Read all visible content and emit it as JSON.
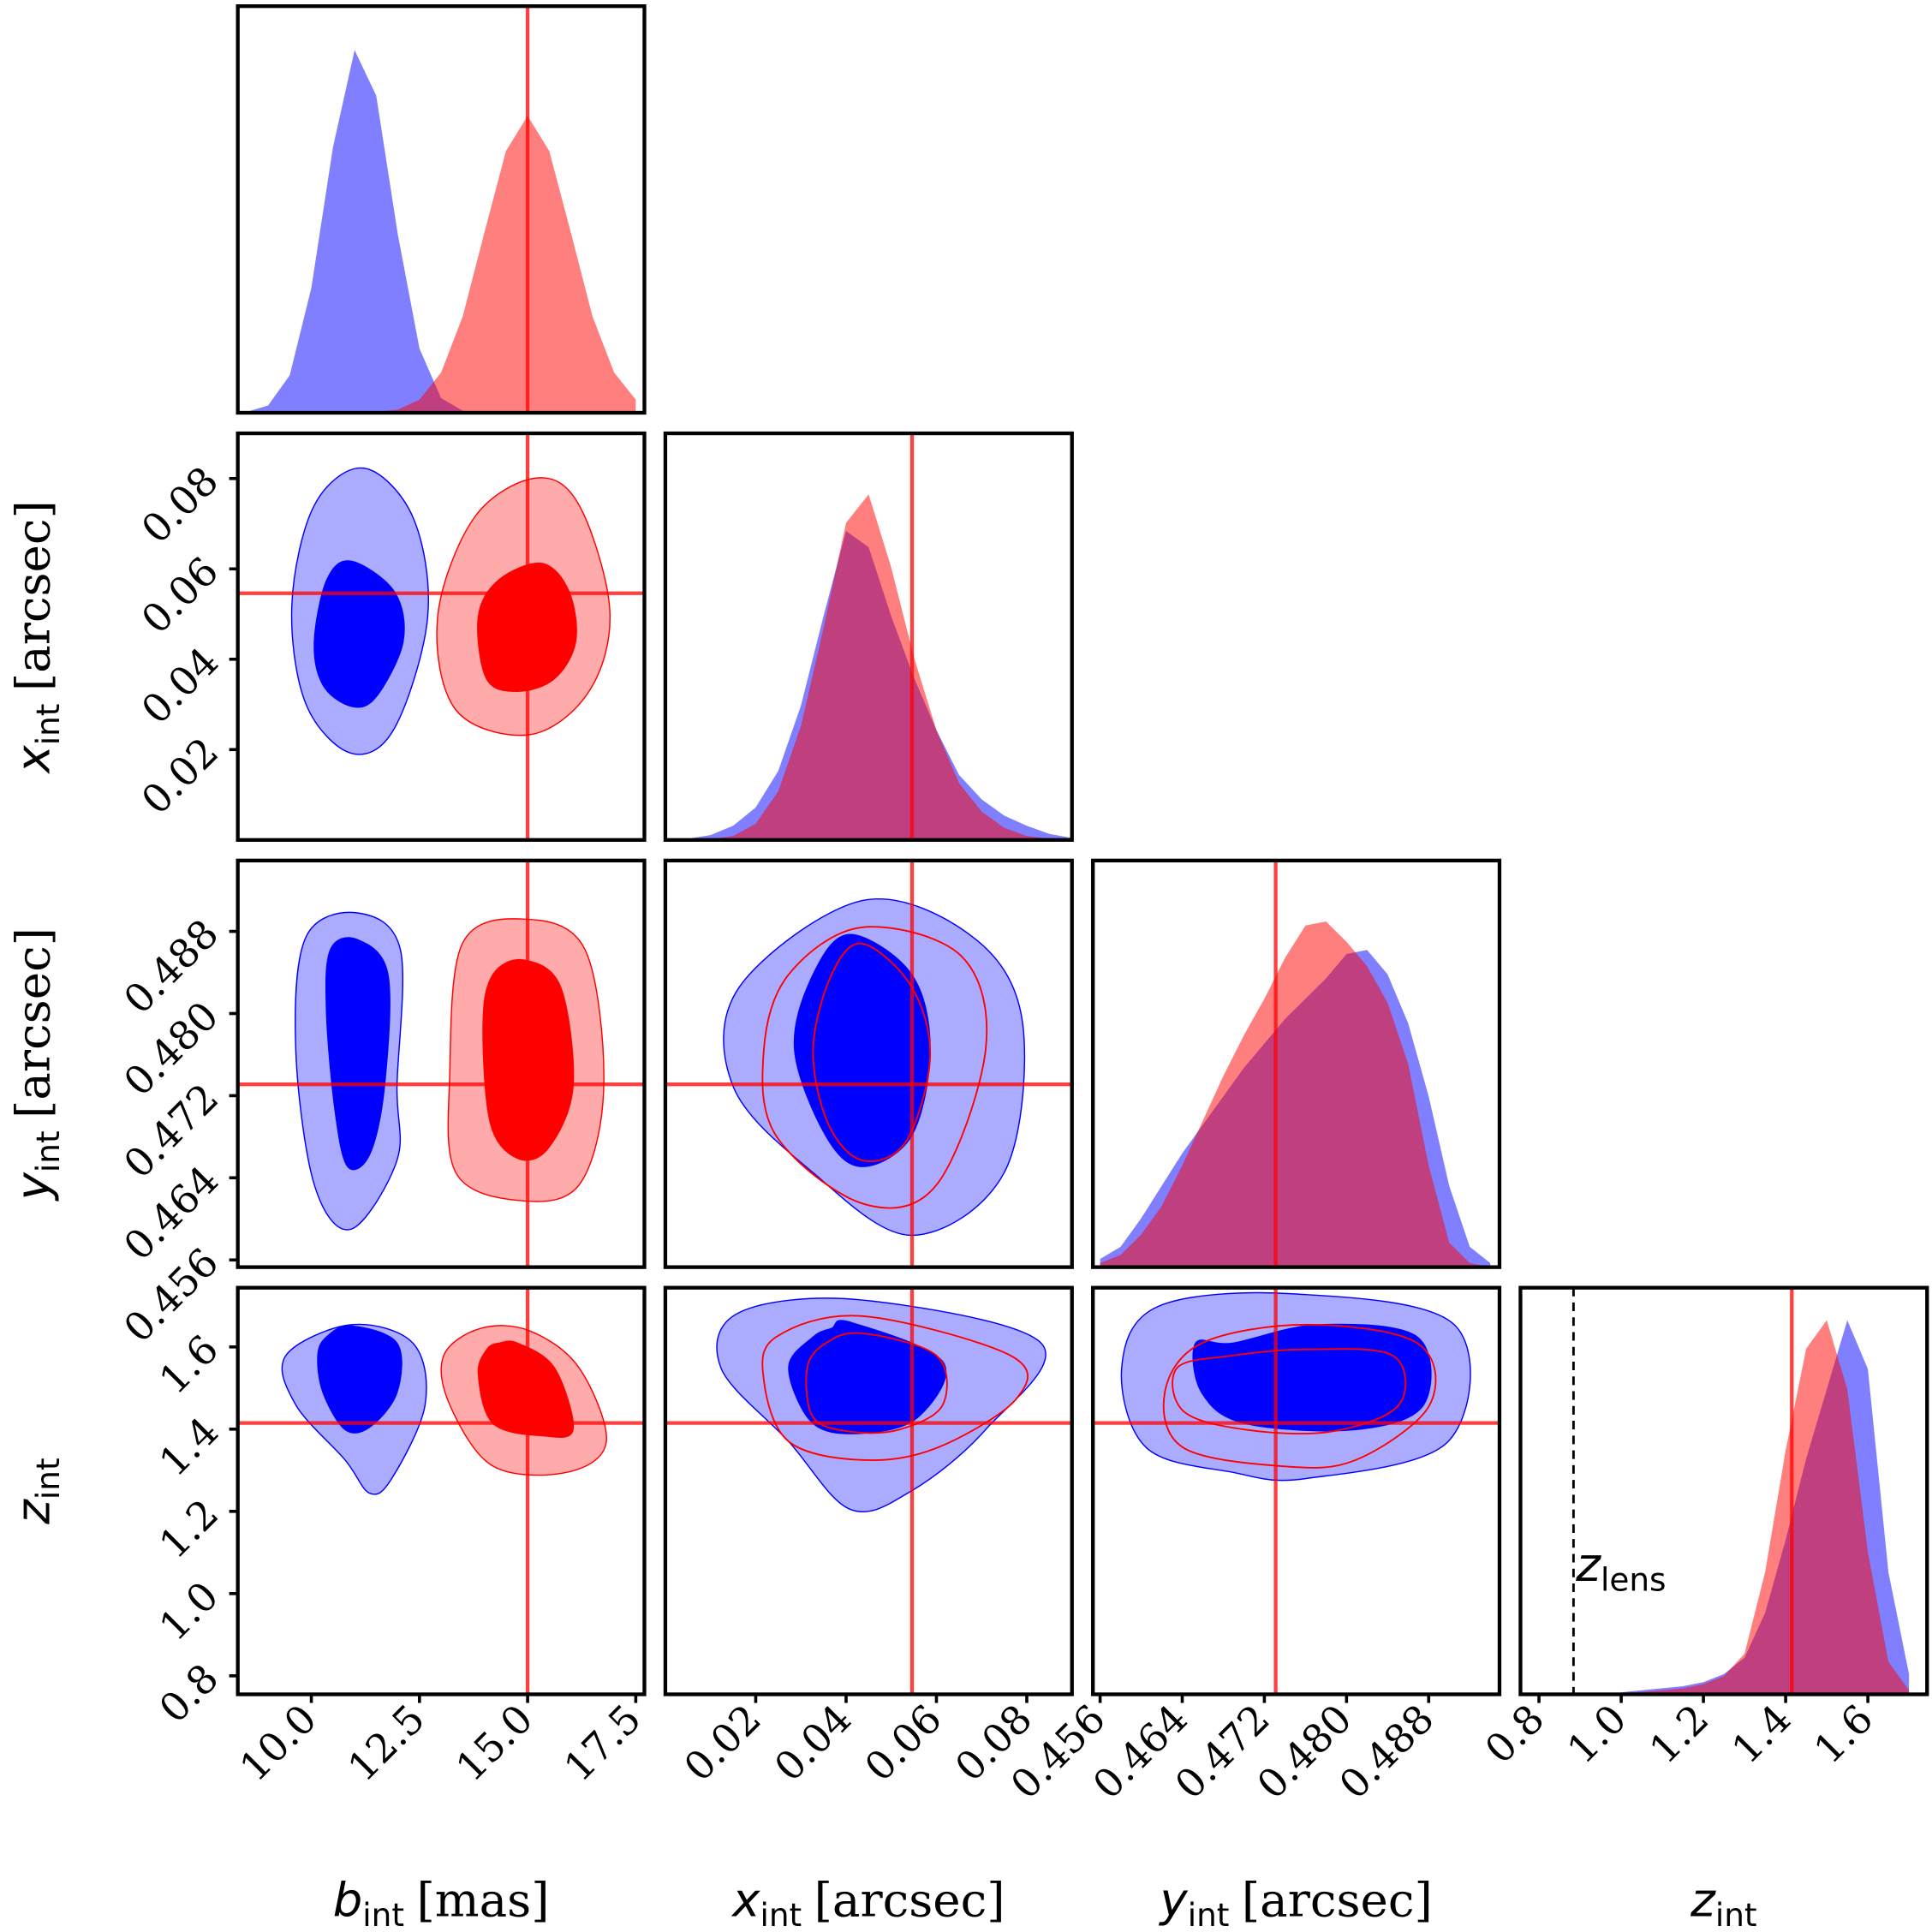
{
  "chart_data": {
    "type": "corner",
    "density_ylim": [
      0,
      1
    ],
    "series": [
      {
        "color": "#0000ff"
      },
      {
        "color": "#ff0000"
      }
    ],
    "truth_color": "#ff0000",
    "params": [
      {
        "symbol": "b",
        "subscript": "int",
        "unit": "[mas]",
        "lim": [
          8.3,
          17.7
        ],
        "ticks": [
          {
            "value": 10,
            "label": "10.0"
          },
          12.5,
          {
            "value": 15,
            "label": "15.0"
          },
          17.5
        ],
        "truth": 15.0,
        "density_x": [
          8.5,
          9,
          9.5,
          10,
          10.5,
          11,
          11.5,
          12,
          12.5,
          13,
          13.5,
          14,
          14.5,
          15,
          15.5,
          16,
          16.5,
          17,
          17.5
        ],
        "density": [
          [
            0.002,
            0.018,
            0.092,
            0.307,
            0.653,
            0.892,
            0.78,
            0.438,
            0.158,
            0.036,
            0.005,
            0,
            0,
            0,
            0,
            0,
            0,
            0,
            0
          ],
          [
            0,
            0,
            0,
            0,
            0,
            0,
            0.002,
            0.008,
            0.032,
            0.099,
            0.237,
            0.443,
            0.644,
            0.73,
            0.644,
            0.443,
            0.237,
            0.099,
            0.032
          ]
        ]
      },
      {
        "symbol": "x",
        "subscript": "int",
        "unit": "[arcsec]",
        "lim": [
          0,
          0.09
        ],
        "ticks": [
          0.02,
          0.04,
          0.06,
          0.08
        ],
        "truth": 0.0546,
        "density_x": [
          0.005,
          0.01,
          0.015,
          0.02,
          0.025,
          0.03,
          0.035,
          0.04,
          0.045,
          0.05,
          0.055,
          0.06,
          0.065,
          0.07,
          0.075,
          0.08,
          0.085,
          0.09
        ],
        "density": [
          [
            0.003,
            0.012,
            0.035,
            0.08,
            0.17,
            0.33,
            0.55,
            0.76,
            0.72,
            0.55,
            0.4,
            0.27,
            0.16,
            0.1,
            0.06,
            0.035,
            0.015,
            0.005
          ],
          [
            0,
            0.002,
            0.01,
            0.04,
            0.12,
            0.28,
            0.52,
            0.78,
            0.85,
            0.67,
            0.45,
            0.27,
            0.14,
            0.07,
            0.03,
            0.01,
            0.003,
            0
          ]
        ]
      },
      {
        "symbol": "y",
        "subscript": "int",
        "unit": "[arcsec]",
        "lim": [
          0.4553,
          0.4949
        ],
        "ticks": [
          0.456,
          0.464,
          0.472,
          {
            "value": 0.48,
            "label": "0.480"
          },
          0.488
        ],
        "truth": 0.4731,
        "density_x": [
          0.456,
          0.458,
          0.46,
          0.462,
          0.464,
          0.466,
          0.468,
          0.47,
          0.472,
          0.474,
          0.476,
          0.478,
          0.48,
          0.482,
          0.484,
          0.486,
          0.488,
          0.49,
          0.492,
          0.494
        ],
        "density": [
          [
            0.02,
            0.05,
            0.12,
            0.2,
            0.28,
            0.35,
            0.42,
            0.49,
            0.55,
            0.61,
            0.66,
            0.71,
            0.77,
            0.78,
            0.72,
            0.6,
            0.42,
            0.2,
            0.05,
            0.01
          ],
          [
            0.01,
            0.03,
            0.08,
            0.15,
            0.25,
            0.36,
            0.47,
            0.57,
            0.66,
            0.76,
            0.84,
            0.85,
            0.8,
            0.74,
            0.65,
            0.5,
            0.25,
            0.06,
            0.01,
            0
          ]
        ]
      },
      {
        "symbol": "z",
        "subscript": "int",
        "lim": [
          0.755,
          1.744
        ],
        "ticks": [
          0.8,
          {
            "value": 1.0,
            "label": "1.0"
          },
          1.2,
          1.4,
          1.6
        ],
        "truth": 1.415,
        "density_x": [
          1.0,
          1.05,
          1.1,
          1.15,
          1.2,
          1.25,
          1.3,
          1.35,
          1.4,
          1.45,
          1.5,
          1.55,
          1.6,
          1.65,
          1.7
        ],
        "density": [
          [
            0.005,
            0.01,
            0.015,
            0.02,
            0.03,
            0.05,
            0.09,
            0.2,
            0.38,
            0.58,
            0.75,
            0.92,
            0.8,
            0.3,
            0.05
          ],
          [
            0.003,
            0.006,
            0.01,
            0.015,
            0.025,
            0.045,
            0.1,
            0.3,
            0.6,
            0.85,
            0.92,
            0.75,
            0.35,
            0.08,
            0.01
          ]
        ]
      }
    ],
    "contours": [
      {
        "series": [
          {
            "filled": true,
            "levels": [
              {
                "x": [
                  11.21,
                  12.35,
                  12.69,
                  11.92,
                  10.92,
                  9.87,
                  9.55,
                  10.07
                ],
                "y": [
                  0.0823,
                  0.0714,
                  0.0494,
                  0.0247,
                  0.0192,
                  0.0302,
                  0.0521,
                  0.0741
                ]
              },
              {
                "x": [
                  10.92,
                  11.92,
                  12.12,
                  11.49,
                  10.92,
                  10.27,
                  10.07,
                  10.36
                ],
                "y": [
                  0.0617,
                  0.0549,
                  0.0439,
                  0.0316,
                  0.0296,
                  0.0343,
                  0.0439,
                  0.0576
                ]
              }
            ]
          },
          {
            "filled": true,
            "levels": [
              {
                "x": [
                  15.19,
                  16.19,
                  16.9,
                  16.42,
                  15.05,
                  13.34,
                  12.92,
                  13.77
                ],
                "y": [
                  0.0801,
                  0.0741,
                  0.0508,
                  0.0329,
                  0.0233,
                  0.0288,
                  0.0494,
                  0.0714
                ]
              },
              {
                "x": [
                  15.34,
                  15.96,
                  16.11,
                  15.62,
                  14.77,
                  14.05,
                  13.86,
                  14.34
                ],
                "y": [
                  0.0612,
                  0.0549,
                  0.0439,
                  0.0357,
                  0.0329,
                  0.0357,
                  0.0494,
                  0.0576
                ]
              }
            ]
          }
        ]
      },
      {
        "series": [
          {
            "filled": true,
            "levels": [
              {
                "x": [
                  11.06,
                  12.06,
                  11.98,
                  11.98,
                  10.92,
                  10.07,
                  9.64,
                  9.87
                ],
                "y": [
                  0.4898,
                  0.4862,
                  0.4729,
                  0.4657,
                  0.459,
                  0.4633,
                  0.4765,
                  0.4874
                ]
              },
              {
                "x": [
                  11.06,
                  11.77,
                  11.69,
                  11.35,
                  10.84,
                  10.55,
                  10.35,
                  10.44
                ],
                "y": [
                  0.4872,
                  0.4838,
                  0.4729,
                  0.4663,
                  0.4651,
                  0.4705,
                  0.4802,
                  0.4862
                ]
              }
            ]
          },
          {
            "filled": true,
            "levels": [
              {
                "x": [
                  14.91,
                  16.33,
                  16.76,
                  16.19,
                  14.77,
                  13.34,
                  13.2,
                  13.49
                ],
                "y": [
                  0.4892,
                  0.4862,
                  0.4729,
                  0.4633,
                  0.4618,
                  0.4645,
                  0.4741,
                  0.4868
                ]
              },
              {
                "x": [
                  14.91,
                  15.76,
                  16.05,
                  15.48,
                  14.77,
                  14.14,
                  13.97,
                  14.2
                ],
                "y": [
                  0.4852,
                  0.4826,
                  0.4729,
                  0.4669,
                  0.4659,
                  0.4693,
                  0.479,
                  0.4838
                ]
              }
            ]
          }
        ]
      },
      {
        "series": [
          {
            "filled": true,
            "levels": [
              {
                "x": [
                  0.0436,
                  0.0682,
                  0.0791,
                  0.075,
                  0.0545,
                  0.0327,
                  0.015,
                  0.0164
                ],
                "y": [
                  0.491,
                  0.4874,
                  0.479,
                  0.4645,
                  0.4584,
                  0.4645,
                  0.4729,
                  0.4826
                ]
              },
              {
                "x": [
                  0.0409,
                  0.0545,
                  0.0586,
                  0.0545,
                  0.0436,
                  0.0355,
                  0.0286,
                  0.0327
                ],
                "y": [
                  0.4877,
                  0.4838,
                  0.4765,
                  0.4681,
                  0.4651,
                  0.4681,
                  0.4765,
                  0.4838
                ]
              }
            ]
          },
          {
            "filled": false,
            "levels": [
              {
                "x": [
                  0.0436,
                  0.0655,
                  0.0709,
                  0.06,
                  0.0436,
                  0.0245,
                  0.0218,
                  0.0273
                ],
                "y": [
                  0.4884,
                  0.4856,
                  0.4765,
                  0.4633,
                  0.4615,
                  0.4681,
                  0.4765,
                  0.4838
                ]
              },
              {
                "x": [
                  0.0436,
                  0.0545,
                  0.0586,
                  0.0532,
                  0.0436,
                  0.036,
                  0.0327,
                  0.0368
                ],
                "y": [
                  0.4868,
                  0.4826,
                  0.4757,
                  0.4675,
                  0.4657,
                  0.4693,
                  0.4765,
                  0.4838
                ]
              }
            ]
          }
        ]
      },
      {
        "series": [
          {
            "filled": true,
            "levels": [
              {
                "x": [
                  10.92,
                  12.35,
                  12.63,
                  11.86,
                  11.35,
                  10.78,
                  9.64,
                  9.41
                ],
                "y": [
                  1.654,
                  1.609,
                  1.459,
                  1.28,
                  1.244,
                  1.325,
                  1.459,
                  1.579
                ]
              },
              {
                "x": [
                  10.92,
                  11.98,
                  11.98,
                  11.35,
                  10.78,
                  10.27,
                  10.15,
                  10.35
                ],
                "y": [
                  1.651,
                  1.609,
                  1.489,
                  1.405,
                  1.399,
                  1.489,
                  1.579,
                  1.624
                ]
              }
            ]
          },
          {
            "filled": true,
            "levels": [
              {
                "x": [
                  15.05,
                  16.19,
                  16.82,
                  15.91,
                  14.2,
                  13.2,
                  13.06,
                  13.91
                ],
                "y": [
                  1.639,
                  1.549,
                  1.37,
                  1.295,
                  1.31,
                  1.459,
                  1.579,
                  1.645
                ]
              },
              {
                "x": [
                  14.77,
                  15.62,
                  16.05,
                  15.34,
                  14.2,
                  13.86,
                  14.06,
                  14.34
                ],
                "y": [
                  1.609,
                  1.549,
                  1.399,
                  1.384,
                  1.414,
                  1.534,
                  1.594,
                  1.609
                ]
              }
            ]
          }
        ]
      },
      {
        "series": [
          {
            "filled": true,
            "levels": [
              {
                "x": [
                  0.0436,
                  0.0832,
                  0.0709,
                  0.0545,
                  0.0409,
                  0.0273,
                  0.0123,
                  0.0164
                ],
                "y": [
                  1.714,
                  1.609,
                  1.399,
                  1.25,
                  1.205,
                  1.37,
                  1.549,
                  1.684
                ]
              },
              {
                "x": [
                  0.0409,
                  0.0614,
                  0.0559,
                  0.0436,
                  0.0327,
                  0.0273,
                  0.0327,
                  0.0368
                ],
                "y": [
                  1.66,
                  1.564,
                  1.429,
                  1.39,
                  1.414,
                  1.549,
                  1.624,
                  1.645
                ]
              }
            ]
          },
          {
            "filled": false,
            "levels": [
              {
                "x": [
                  0.0436,
                  0.0764,
                  0.0777,
                  0.06,
                  0.0436,
                  0.0273,
                  0.0218,
                  0.0245
                ],
                "y": [
                  1.675,
                  1.579,
                  1.474,
                  1.354,
                  1.325,
                  1.37,
                  1.519,
                  1.624
                ]
              },
              {
                "x": [
                  0.0436,
                  0.06,
                  0.0614,
                  0.0518,
                  0.0409,
                  0.0327,
                  0.0314,
                  0.0355
                ],
                "y": [
                  1.633,
                  1.579,
                  1.459,
                  1.399,
                  1.394,
                  1.429,
                  1.549,
                  1.609
                ]
              }
            ]
          }
        ]
      },
      {
        "series": [
          {
            "filled": true,
            "levels": [
              {
                "x": [
                  0.4749,
                  0.4905,
                  0.4899,
                  0.4761,
                  0.4689,
                  0.4605,
                  0.4581,
                  0.4617
                ],
                "y": [
                  1.729,
                  1.654,
                  1.37,
                  1.28,
                  1.295,
                  1.355,
                  1.549,
                  1.699
                ]
              },
              {
                "x": [
                  0.4773,
                  0.4869,
                  0.4875,
                  0.4809,
                  0.4701,
                  0.4659,
                  0.4653,
                  0.4689
                ],
                "y": [
                  1.654,
                  1.624,
                  1.459,
                  1.399,
                  1.414,
                  1.489,
                  1.609,
                  1.609
                ]
              }
            ]
          },
          {
            "filled": false,
            "levels": [
              {
                "x": [
                  0.4761,
                  0.4869,
                  0.4881,
                  0.4809,
                  0.4737,
                  0.4641,
                  0.4623,
                  0.4659
                ],
                "y": [
                  1.654,
                  1.609,
                  1.459,
                  1.325,
                  1.31,
                  1.355,
                  1.489,
                  1.609
                ]
              },
              {
                "x": [
                  0.4761,
                  0.4845,
                  0.4851,
                  0.4785,
                  0.4701,
                  0.4641,
                  0.4635,
                  0.4689
                ],
                "y": [
                  1.594,
                  1.579,
                  1.459,
                  1.394,
                  1.399,
                  1.444,
                  1.549,
                  1.579
                ]
              }
            ]
          }
        ]
      }
    ],
    "annotation": {
      "symbol": "z",
      "subscript": "lens",
      "value": 0.884
    }
  }
}
